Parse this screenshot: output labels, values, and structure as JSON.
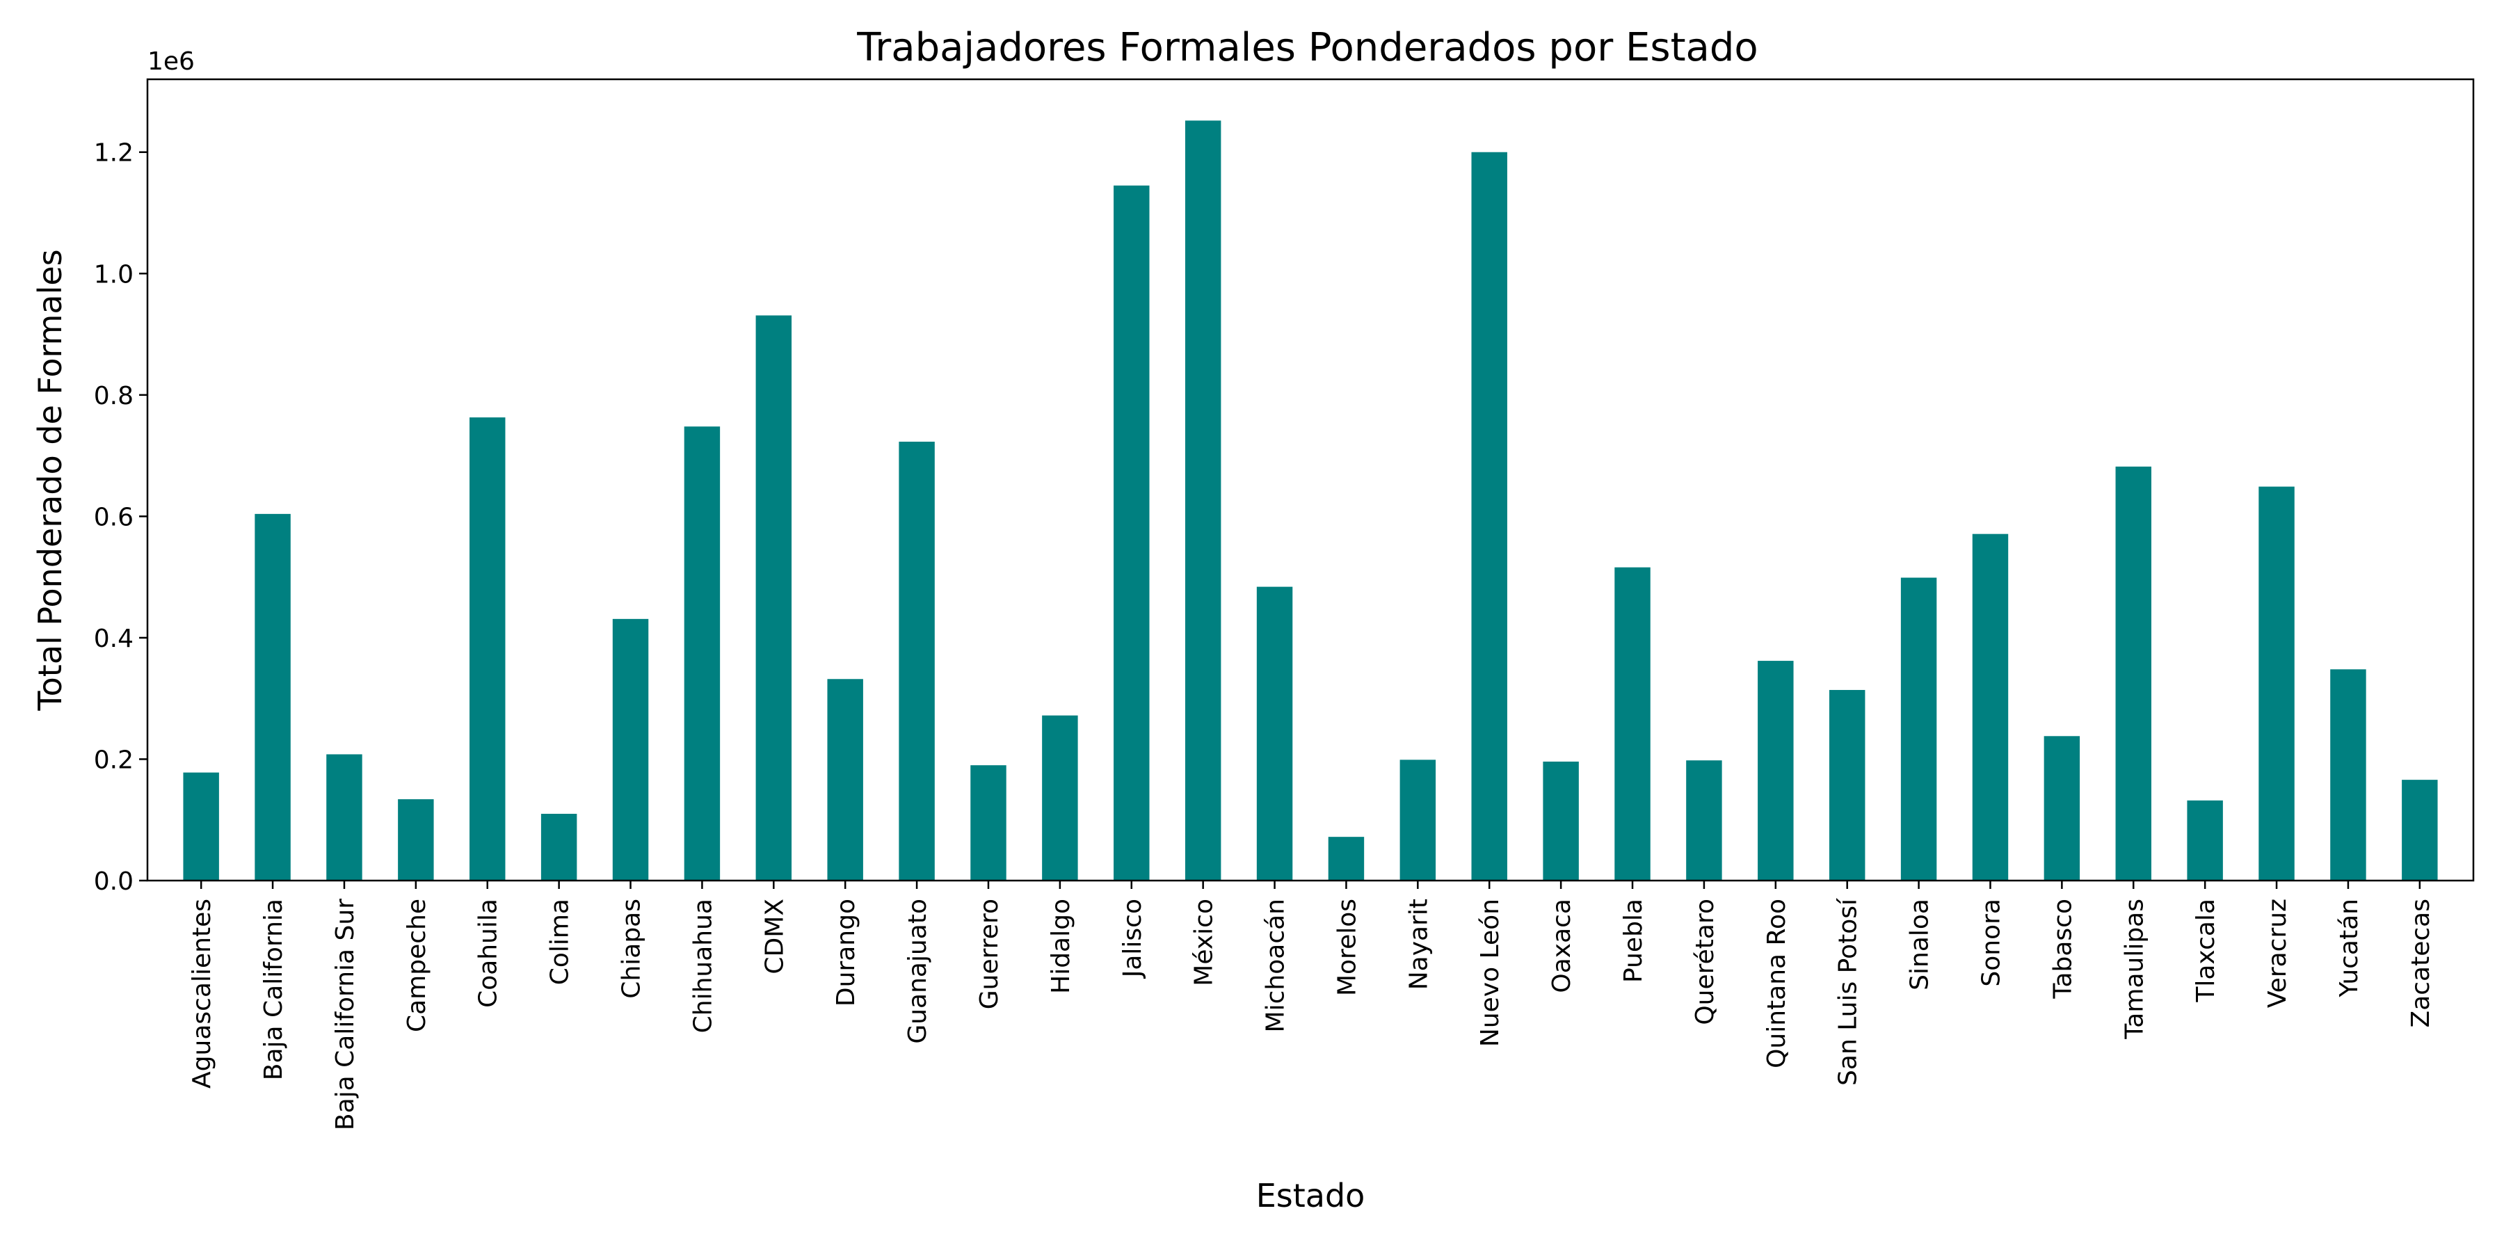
{
  "chart_data": {
    "type": "bar",
    "title": "Trabajadores Formales Ponderados por Estado",
    "xlabel": "Estado",
    "ylabel": "Total Ponderado de Formales",
    "y_offset_label": "1e6",
    "ylim": [
      0,
      1320000
    ],
    "y_ticks": [
      0,
      200000,
      400000,
      600000,
      800000,
      1000000,
      1200000
    ],
    "y_tick_labels": [
      "0.0",
      "0.2",
      "0.4",
      "0.6",
      "0.8",
      "1.0",
      "1.2"
    ],
    "grid": false,
    "bar_color": "#008080",
    "categories": [
      "Aguascalientes",
      "Baja California",
      "Baja California Sur",
      "Campeche",
      "Coahuila",
      "Colima",
      "Chiapas",
      "Chihuahua",
      "CDMX",
      "Durango",
      "Guanajuato",
      "Guerrero",
      "Hidalgo",
      "Jalisco",
      "México",
      "Michoacán",
      "Morelos",
      "Nayarit",
      "Nuevo León",
      "Oaxaca",
      "Puebla",
      "Querétaro",
      "Quintana Roo",
      "San Luis Potosí",
      "Sinaloa",
      "Sonora",
      "Tabasco",
      "Tamaulipas",
      "Tlaxcala",
      "Veracruz",
      "Yucatán",
      "Zacatecas"
    ],
    "values": [
      178000,
      604000,
      208000,
      134000,
      763000,
      110000,
      431000,
      748000,
      931000,
      332000,
      723000,
      190000,
      272000,
      1145000,
      1252000,
      484000,
      72000,
      199000,
      1200000,
      196000,
      516000,
      198000,
      362000,
      314000,
      499000,
      571000,
      238000,
      682000,
      132000,
      649000,
      348000,
      166000
    ]
  }
}
